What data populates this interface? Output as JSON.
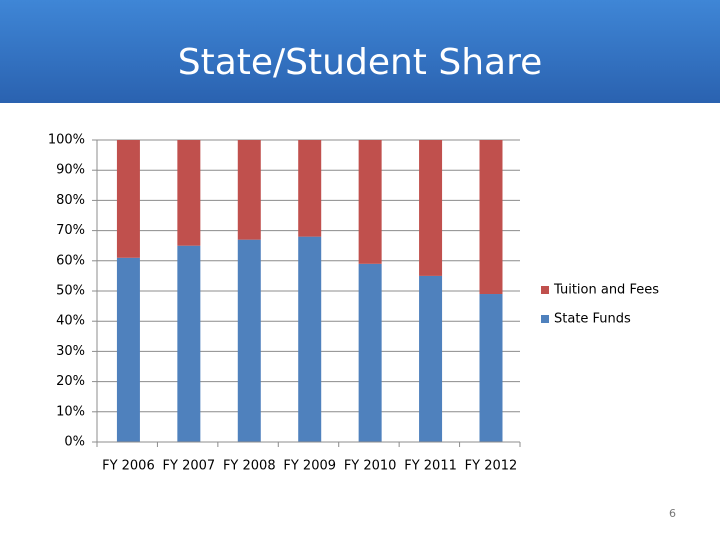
{
  "chart_data": {
    "type": "stacked_bar",
    "title": "State/Student Share",
    "categories": [
      "FY 2006",
      "FY 2007",
      "FY 2008",
      "FY 2009",
      "FY 2010",
      "FY 2011",
      "FY 2012"
    ],
    "series": [
      {
        "name": "State Funds",
        "color": "#4f81bd",
        "values": [
          61,
          65,
          67,
          68,
          59,
          55,
          49
        ]
      },
      {
        "name": "Tuition and Fees",
        "color": "#c0504d",
        "values": [
          39,
          35,
          33,
          32,
          41,
          45,
          51
        ]
      }
    ],
    "ylim": [
      0,
      100
    ],
    "yticks": [
      {
        "value": 0,
        "label": "0%"
      },
      {
        "value": 10,
        "label": "10%"
      },
      {
        "value": 20,
        "label": "20%"
      },
      {
        "value": 30,
        "label": "30%"
      },
      {
        "value": 40,
        "label": "40%"
      },
      {
        "value": 50,
        "label": "50%"
      },
      {
        "value": 60,
        "label": "60%"
      },
      {
        "value": 70,
        "label": "70%"
      },
      {
        "value": 80,
        "label": "80%"
      },
      {
        "value": 90,
        "label": "90%"
      },
      {
        "value": 100,
        "label": "100%"
      }
    ],
    "grid": true
  },
  "page_number": "6"
}
